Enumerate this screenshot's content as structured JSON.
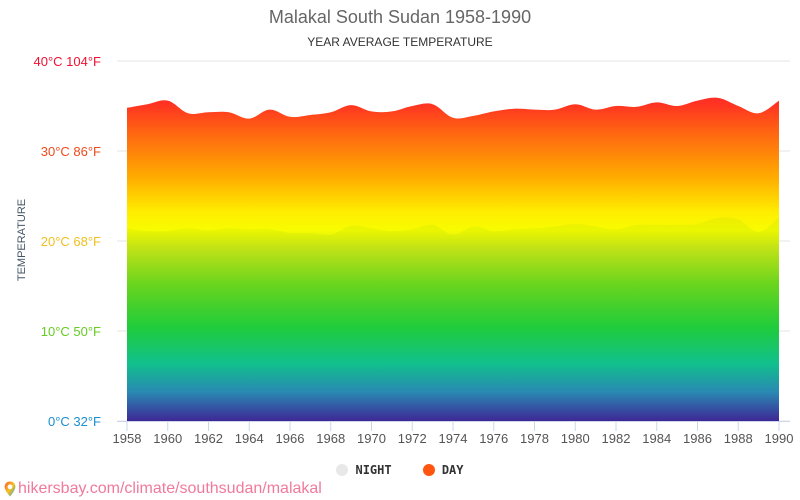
{
  "chart_data": {
    "type": "area",
    "title": "Malakal South Sudan 1958-1990",
    "subtitle": "YEAR AVERAGE TEMPERATURE",
    "xlabel": "",
    "ylabel": "TEMPERATURE",
    "xlim": [
      1958,
      1990
    ],
    "ylim": [
      0,
      40
    ],
    "grid": true,
    "legend_position": "bottom-center",
    "x": [
      1958,
      1959,
      1960,
      1961,
      1962,
      1963,
      1964,
      1965,
      1966,
      1967,
      1968,
      1969,
      1970,
      1971,
      1972,
      1973,
      1974,
      1975,
      1976,
      1977,
      1978,
      1979,
      1980,
      1981,
      1982,
      1983,
      1984,
      1985,
      1986,
      1987,
      1988,
      1989,
      1990
    ],
    "x_tick_labels": [
      "1958",
      "1960",
      "1962",
      "1964",
      "1966",
      "1968",
      "1970",
      "1972",
      "1974",
      "1976",
      "1978",
      "1980",
      "1982",
      "1984",
      "1986",
      "1988",
      "1990"
    ],
    "y_ticks": [
      {
        "value": 0,
        "label": "0°C 32°F",
        "color": "#1a8fd0"
      },
      {
        "value": 10,
        "label": "10°C 50°F",
        "color": "#66cc22"
      },
      {
        "value": 20,
        "label": "20°C 68°F",
        "color": "#f0c020"
      },
      {
        "value": 30,
        "label": "30°C 86°F",
        "color": "#f04a1a"
      },
      {
        "value": 40,
        "label": "40°C 104°F",
        "color": "#ee1133"
      }
    ],
    "series": [
      {
        "name": "NIGHT",
        "unit": "°C",
        "values": [
          21.4,
          21.1,
          21.1,
          21.4,
          21.2,
          21.4,
          21.3,
          21.3,
          20.9,
          20.9,
          20.7,
          21.7,
          21.4,
          21.1,
          21.3,
          21.8,
          20.7,
          21.6,
          21.1,
          21.3,
          21.4,
          21.6,
          21.9,
          21.6,
          21.3,
          21.8,
          21.8,
          21.8,
          21.9,
          22.6,
          22.4,
          21.0,
          22.6
        ]
      },
      {
        "name": "DAY",
        "unit": "°C",
        "values": [
          34.8,
          35.2,
          35.6,
          34.2,
          34.3,
          34.3,
          33.6,
          34.6,
          33.8,
          34.0,
          34.3,
          35.1,
          34.4,
          34.4,
          35.0,
          35.2,
          33.7,
          33.9,
          34.4,
          34.7,
          34.6,
          34.6,
          35.2,
          34.6,
          35.0,
          34.9,
          35.4,
          35.0,
          35.6,
          35.9,
          35.0,
          34.2,
          35.6
        ]
      }
    ]
  },
  "legend": {
    "night_label": "NIGHT",
    "night_color": "#e8e8e8",
    "day_label": "DAY",
    "day_color": "#ff5511"
  },
  "source": {
    "text": "hikersbay.com/climate/southsudan/malakal",
    "color": "#f07a9b"
  }
}
